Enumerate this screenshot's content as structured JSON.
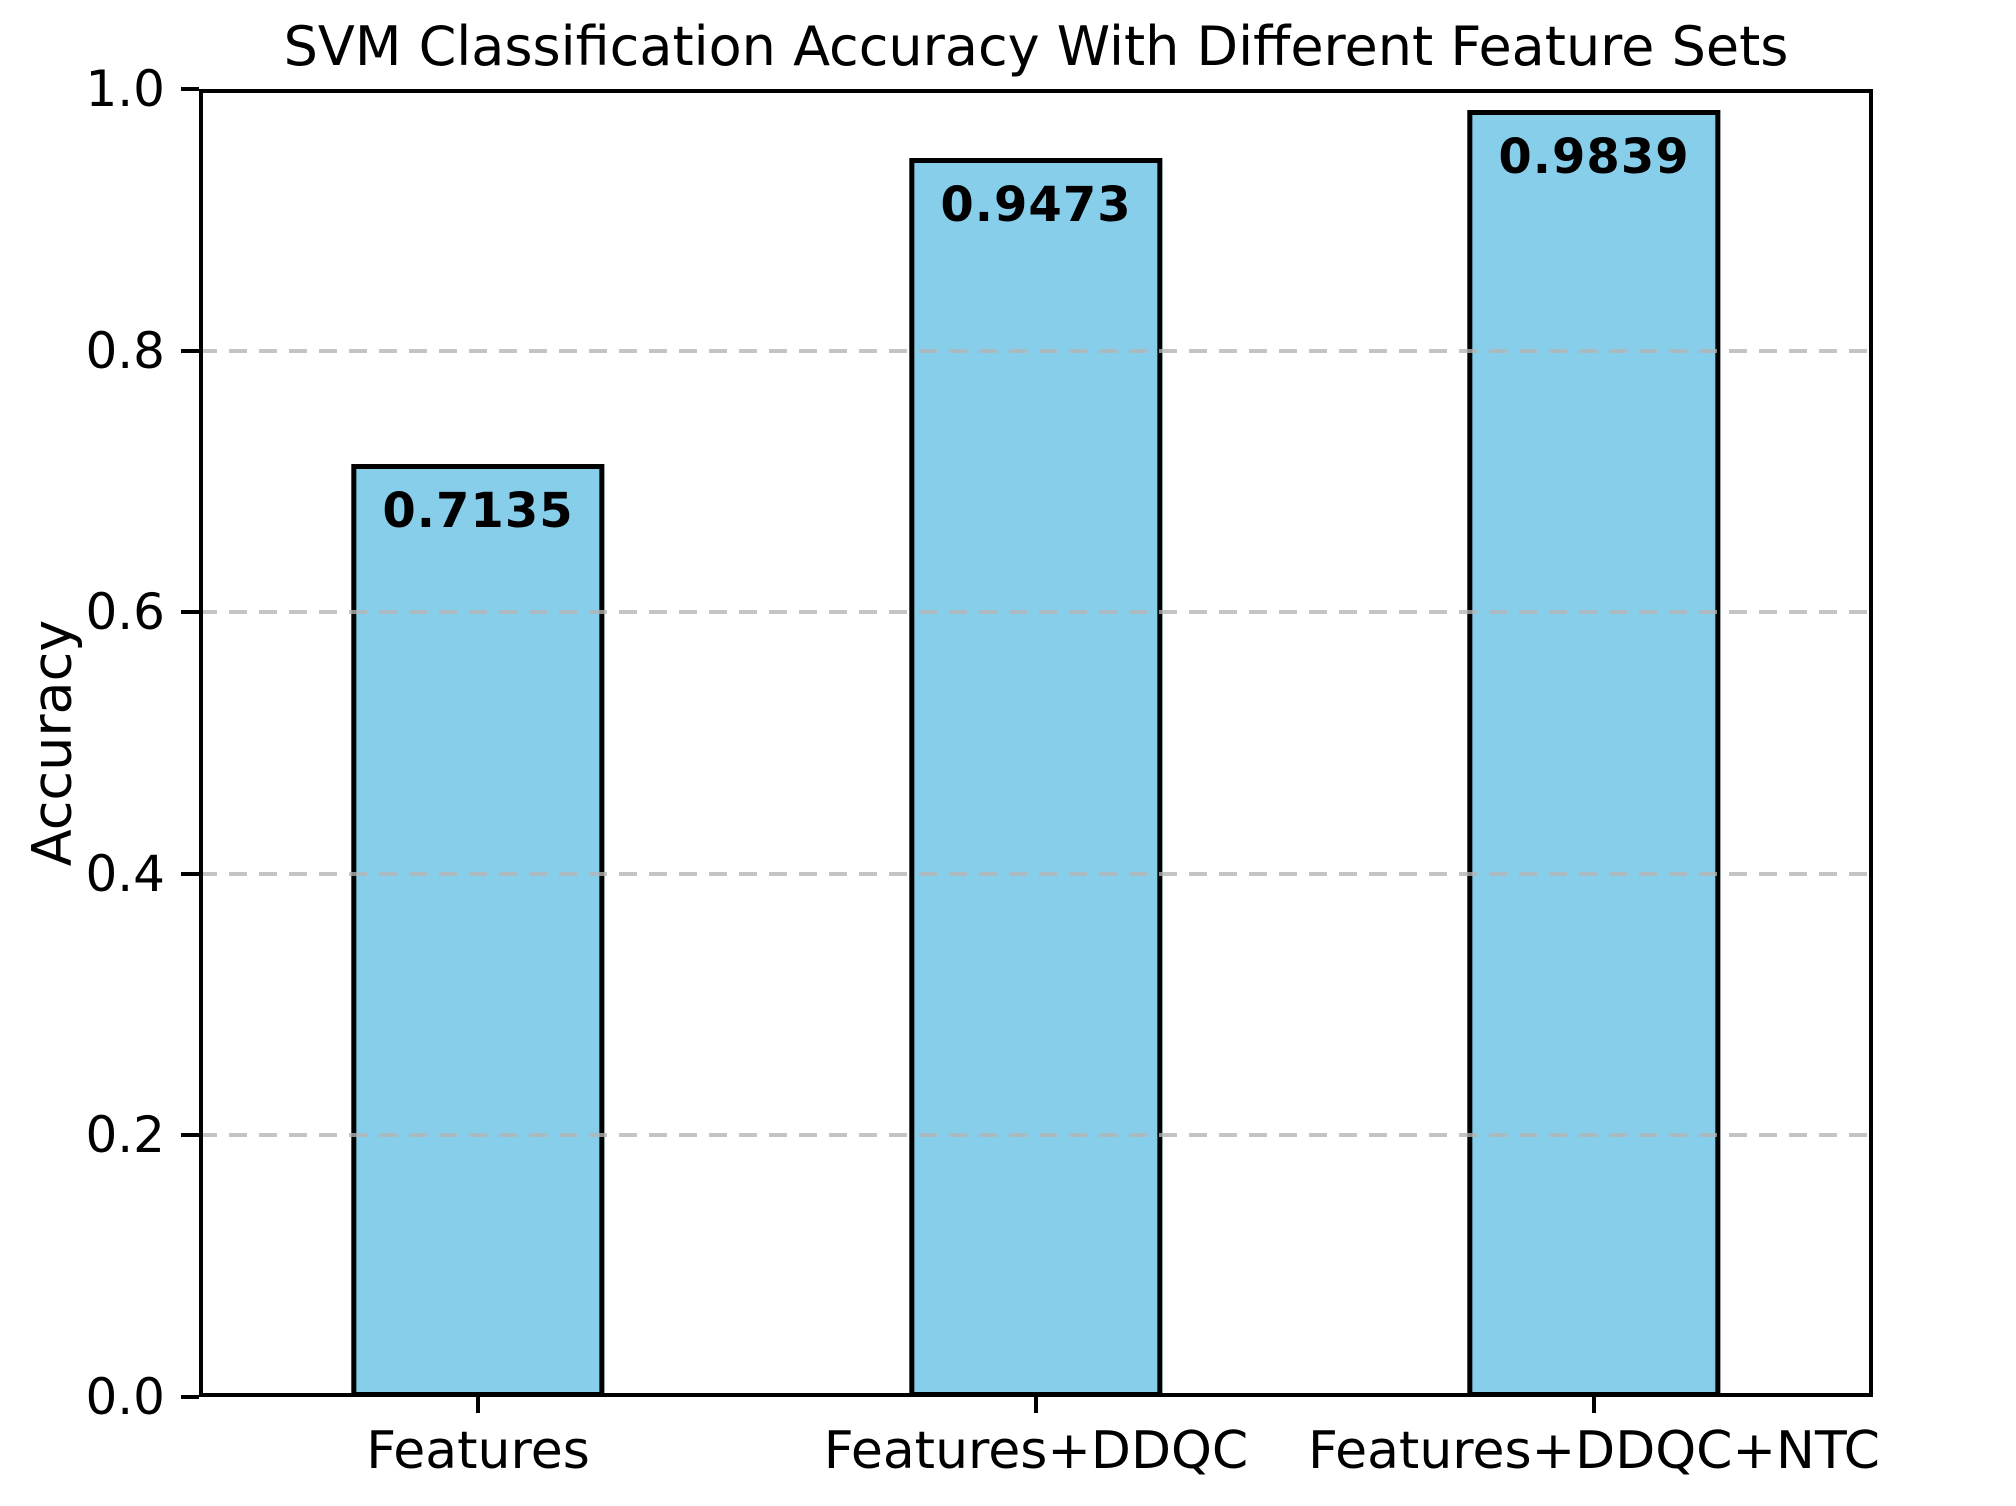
{
  "chart_data": {
    "type": "bar",
    "title": "SVM Classification Accuracy With Different Feature Sets",
    "xlabel": "",
    "ylabel": "Accuracy",
    "categories": [
      "Features",
      "Features+DDQC",
      "Features+DDQC+NTC"
    ],
    "values": [
      0.7135,
      0.9473,
      0.9839
    ],
    "value_labels": [
      "0.7135",
      "0.9473",
      "0.9839"
    ],
    "ylim": [
      0.0,
      1.0
    ],
    "ytick_labels": [
      "0.0",
      "0.2",
      "0.4",
      "0.6",
      "0.8",
      "1.0"
    ],
    "grid": {
      "axis": "y",
      "style": "dashed",
      "on_top_of_bars": true
    },
    "legend": "none",
    "colors": {
      "bar_fill": "#87CEEB",
      "bar_edge": "#000000",
      "grid_line": "#c8c8c8",
      "text": "#000000",
      "background": "#ffffff"
    }
  }
}
